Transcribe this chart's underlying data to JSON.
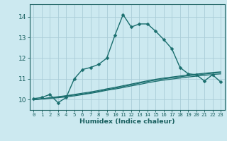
{
  "xlabel": "Humidex (Indice chaleur)",
  "ylabel": "",
  "background_color": "#cce9f0",
  "grid_color": "#aacdd8",
  "line_color": "#1a6e6e",
  "tick_color": "#1a6060",
  "xlim": [
    -0.5,
    23.5
  ],
  "ylim": [
    9.5,
    14.6
  ],
  "xticks": [
    0,
    1,
    2,
    3,
    4,
    5,
    6,
    7,
    8,
    9,
    10,
    11,
    12,
    13,
    14,
    15,
    16,
    17,
    18,
    19,
    20,
    21,
    22,
    23
  ],
  "yticks": [
    10,
    11,
    12,
    13,
    14
  ],
  "series": [
    {
      "x": [
        0,
        1,
        2,
        3,
        4,
        5,
        6,
        7,
        8,
        9,
        10,
        11,
        12,
        13,
        14,
        15,
        16,
        17,
        18,
        19,
        20,
        21,
        22,
        23
      ],
      "y": [
        10.05,
        10.1,
        10.25,
        9.85,
        10.1,
        11.0,
        11.45,
        11.55,
        11.7,
        12.0,
        13.1,
        14.1,
        13.5,
        13.65,
        13.65,
        13.3,
        12.9,
        12.45,
        11.55,
        11.25,
        11.2,
        10.9,
        11.2,
        10.85
      ],
      "marker": "D",
      "markersize": 2.5,
      "linewidth": 1.0,
      "has_marker": true
    },
    {
      "x": [
        0,
        1,
        2,
        3,
        4,
        5,
        6,
        7,
        8,
        9,
        10,
        11,
        12,
        13,
        14,
        15,
        16,
        17,
        18,
        19,
        20,
        21,
        22,
        23
      ],
      "y": [
        10.0,
        10.04,
        10.08,
        10.12,
        10.17,
        10.22,
        10.27,
        10.33,
        10.4,
        10.48,
        10.55,
        10.63,
        10.71,
        10.79,
        10.87,
        10.94,
        11.0,
        11.05,
        11.1,
        11.15,
        11.19,
        11.23,
        11.27,
        11.3
      ],
      "marker": null,
      "markersize": 0,
      "linewidth": 0.9,
      "has_marker": false
    },
    {
      "x": [
        0,
        1,
        2,
        3,
        4,
        5,
        6,
        7,
        8,
        9,
        10,
        11,
        12,
        13,
        14,
        15,
        16,
        17,
        18,
        19,
        20,
        21,
        22,
        23
      ],
      "y": [
        10.0,
        10.04,
        10.09,
        10.14,
        10.19,
        10.25,
        10.31,
        10.37,
        10.44,
        10.52,
        10.59,
        10.67,
        10.75,
        10.83,
        10.91,
        10.98,
        11.04,
        11.09,
        11.14,
        11.19,
        11.23,
        11.27,
        11.31,
        11.34
      ],
      "marker": null,
      "markersize": 0,
      "linewidth": 0.9,
      "has_marker": false
    },
    {
      "x": [
        0,
        1,
        2,
        3,
        4,
        5,
        6,
        7,
        8,
        9,
        10,
        11,
        12,
        13,
        14,
        15,
        16,
        17,
        18,
        19,
        20,
        21,
        22,
        23
      ],
      "y": [
        10.0,
        10.03,
        10.06,
        10.09,
        10.13,
        10.18,
        10.24,
        10.3,
        10.37,
        10.45,
        10.51,
        10.58,
        10.66,
        10.73,
        10.81,
        10.88,
        10.94,
        10.99,
        11.04,
        11.09,
        11.13,
        11.17,
        11.21,
        11.24
      ],
      "marker": null,
      "markersize": 0,
      "linewidth": 0.9,
      "has_marker": false
    }
  ]
}
